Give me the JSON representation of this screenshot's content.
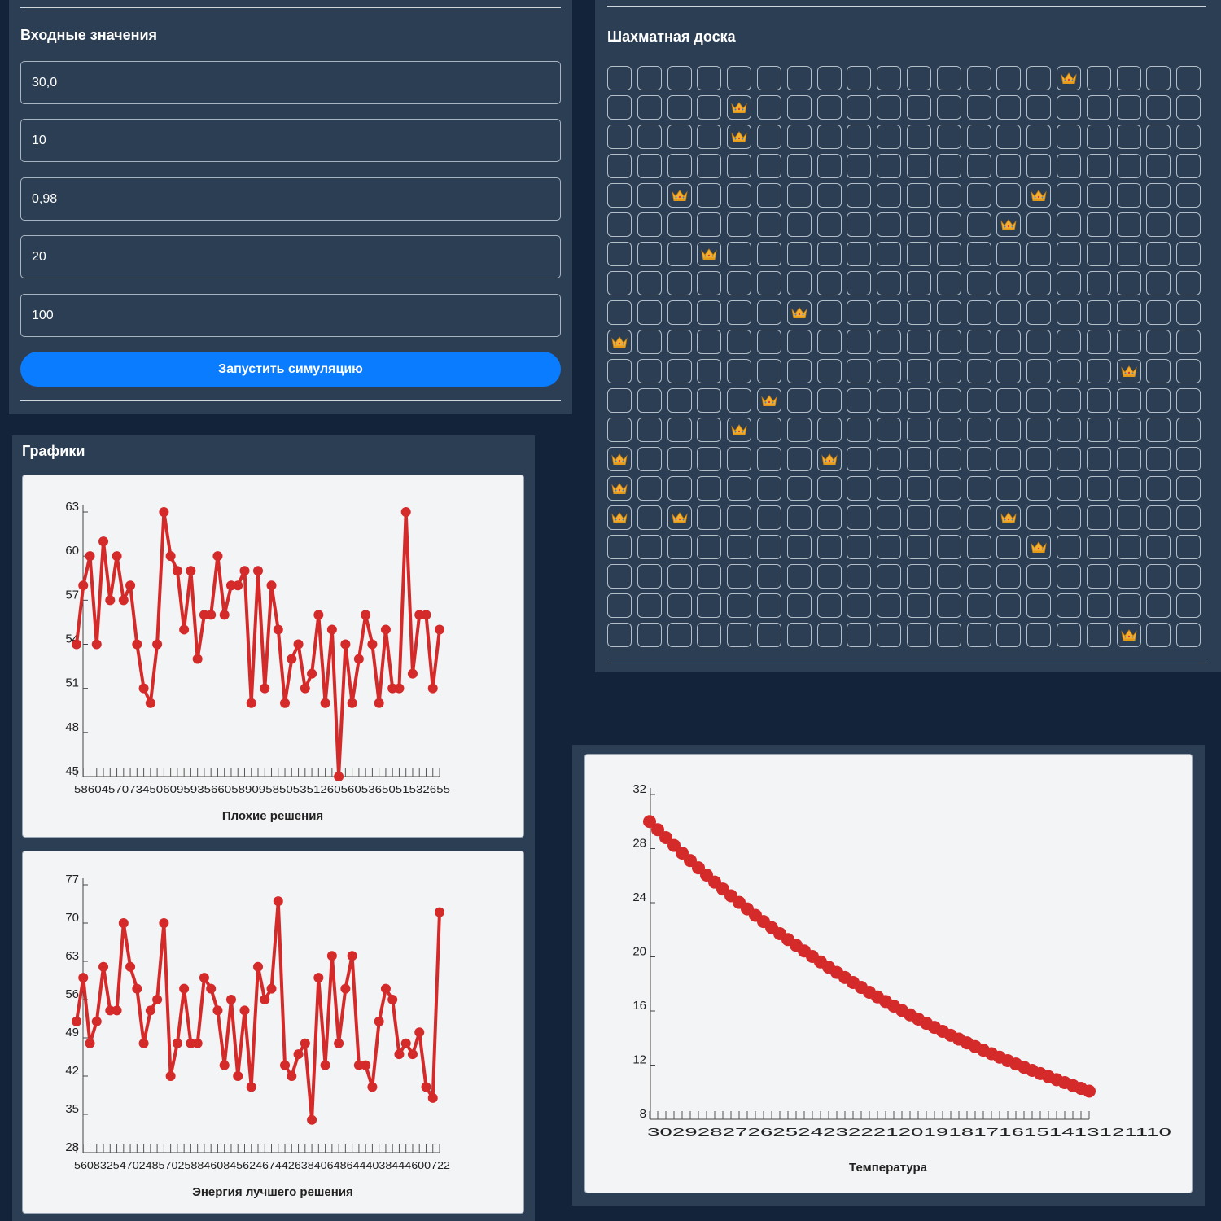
{
  "colors": {
    "background": "#13233a",
    "panel": "#2c3e53",
    "accent": "#0a7cff",
    "series": "#d42a2a",
    "card": "#f3f4f6"
  },
  "inputs": {
    "title": "Входные значения",
    "fields": [
      "30,0",
      "10",
      "0,98",
      "20",
      "100"
    ],
    "run_label": "Запустить симуляцию"
  },
  "board": {
    "title": "Шахматная доска",
    "size": 20,
    "piece_icon": "crown-icon",
    "queens": [
      [
        0,
        15
      ],
      [
        1,
        4
      ],
      [
        2,
        4
      ],
      [
        4,
        2
      ],
      [
        4,
        14
      ],
      [
        5,
        13
      ],
      [
        6,
        3
      ],
      [
        8,
        6
      ],
      [
        9,
        0
      ],
      [
        10,
        17
      ],
      [
        11,
        5
      ],
      [
        12,
        4
      ],
      [
        13,
        0
      ],
      [
        13,
        7
      ],
      [
        14,
        0
      ],
      [
        15,
        0
      ],
      [
        15,
        2
      ],
      [
        15,
        13
      ],
      [
        16,
        14
      ],
      [
        19,
        17
      ]
    ]
  },
  "charts_panel": {
    "title": "Графики"
  },
  "chart_data": [
    {
      "type": "line",
      "title": "Плохие решения",
      "yticks": [
        45,
        48,
        51,
        54,
        57,
        60,
        63
      ],
      "ylim": [
        45,
        63
      ],
      "x_tick_labels": "5860457073450609593566058909585053512605605365051532655",
      "values": [
        54,
        58,
        60,
        54,
        61,
        57,
        60,
        57,
        58,
        54,
        51,
        50,
        54,
        63,
        60,
        59,
        55,
        59,
        53,
        56,
        56,
        60,
        56,
        58,
        58,
        59,
        50,
        59,
        51,
        58,
        55,
        50,
        53,
        54,
        51,
        52,
        56,
        50,
        55,
        45,
        54,
        50,
        53,
        56,
        54,
        50,
        55,
        51,
        51,
        63,
        52,
        56,
        56,
        51,
        55
      ]
    },
    {
      "type": "line",
      "title": "Энергия лучшего решения",
      "yticks": [
        28,
        35,
        42,
        49,
        56,
        63,
        70,
        77
      ],
      "ylim": [
        28,
        77
      ],
      "x_tick_labels": "5608325470248570258846084562467442638406486444038444600722",
      "values": [
        52,
        60,
        48,
        52,
        62,
        54,
        54,
        70,
        62,
        58,
        48,
        54,
        56,
        70,
        42,
        48,
        58,
        48,
        48,
        60,
        58,
        54,
        44,
        56,
        42,
        54,
        40,
        62,
        56,
        58,
        74,
        44,
        42,
        46,
        48,
        34,
        60,
        44,
        64,
        48,
        58,
        64,
        44,
        44,
        40,
        52,
        58,
        56,
        46,
        48,
        46,
        50,
        40,
        38,
        72
      ]
    },
    {
      "type": "line",
      "title": "Температура",
      "yticks": [
        8,
        12,
        16,
        20,
        24,
        28,
        32
      ],
      "ylim": [
        8,
        32
      ],
      "x_tick_labels": "302928272625242322212019181716151413121110",
      "start": 30.0,
      "ratio": 0.98,
      "count": 55
    }
  ]
}
